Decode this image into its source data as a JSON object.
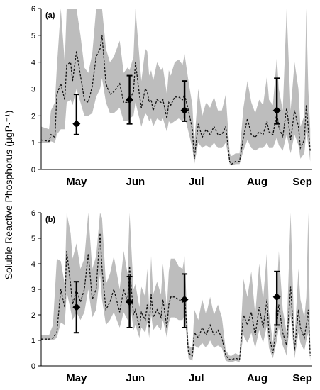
{
  "figure": {
    "ylabel": "Soluble Reactive Phosphorus (µgP·⁻¹)"
  },
  "chart_data": [
    {
      "panel": "(a)",
      "type": "line",
      "ylim": [
        0,
        6
      ],
      "yticks": [
        0,
        1,
        2,
        3,
        4,
        5,
        6
      ],
      "xlim": [
        0,
        138
      ],
      "x_tick_labels": [
        {
          "label": "May",
          "x": 18
        },
        {
          "label": "Jun",
          "x": 48
        },
        {
          "label": "Jul",
          "x": 79
        },
        {
          "label": "Aug",
          "x": 110
        },
        {
          "label": "Sep",
          "x": 133
        }
      ],
      "series": [
        {
          "style": "dashed-black",
          "x": [
            0,
            4,
            5,
            7,
            8,
            10,
            12,
            13,
            15,
            16,
            18,
            20,
            22,
            24,
            26,
            28,
            30,
            31,
            33,
            35,
            37,
            40,
            42,
            44,
            45,
            47,
            48,
            50,
            51,
            53,
            54,
            55,
            56,
            57,
            59,
            61,
            62,
            64,
            65,
            66,
            68,
            70,
            72,
            73,
            75,
            77,
            78,
            80,
            82,
            84,
            86,
            88,
            90,
            92,
            94,
            96,
            97,
            99,
            101,
            103,
            105,
            107,
            109,
            111,
            113,
            115,
            116,
            118,
            120,
            121,
            123,
            125,
            127,
            129,
            131,
            132,
            134,
            135,
            136,
            137
          ],
          "values": [
            1.1,
            1.05,
            1.3,
            1.2,
            2.8,
            3.2,
            2.6,
            3.9,
            4.0,
            3.3,
            4.4,
            3.5,
            2.6,
            2.5,
            3.1,
            4.2,
            4.5,
            5.0,
            3.2,
            2.8,
            2.9,
            3.2,
            2.5,
            2.5,
            2.6,
            2.9,
            4.0,
            2.8,
            2.3,
            3.0,
            2.9,
            2.5,
            2.6,
            2.2,
            2.6,
            2.5,
            2.6,
            1.9,
            2.5,
            2.4,
            2.7,
            2.7,
            2.6,
            2.8,
            2.2,
            1.5,
            0.4,
            1.7,
            1.2,
            1.5,
            1.3,
            1.6,
            1.3,
            1.3,
            1.6,
            0.3,
            0.2,
            0.3,
            0.3,
            1.2,
            1.9,
            1.3,
            1.2,
            1.4,
            1.3,
            1.8,
            1.4,
            1.3,
            2.1,
            1.6,
            1.2,
            2.3,
            1.1,
            2.2,
            1.6,
            0.8,
            1.1,
            2.4,
            1.5,
            0.7
          ]
        },
        {
          "style": "grey-band",
          "x": [
            0,
            4,
            5,
            7,
            8,
            10,
            12,
            13,
            15,
            16,
            18,
            20,
            22,
            24,
            26,
            28,
            30,
            31,
            33,
            35,
            37,
            40,
            42,
            44,
            45,
            47,
            48,
            50,
            51,
            53,
            54,
            55,
            56,
            57,
            59,
            61,
            62,
            64,
            65,
            66,
            68,
            70,
            72,
            73,
            75,
            77,
            78,
            80,
            82,
            84,
            86,
            88,
            90,
            92,
            94,
            96,
            97,
            99,
            101,
            103,
            105,
            107,
            109,
            111,
            113,
            115,
            116,
            118,
            120,
            121,
            123,
            125,
            127,
            129,
            131,
            132,
            134,
            135,
            136,
            137
          ],
          "lower": [
            1.0,
            1.0,
            1.05,
            1.0,
            1.3,
            1.5,
            1.5,
            2.5,
            2.6,
            2.4,
            3.0,
            2.5,
            2.0,
            2.0,
            2.1,
            2.7,
            3.0,
            3.4,
            2.5,
            2.1,
            2.1,
            2.3,
            1.8,
            1.8,
            1.9,
            2.0,
            2.5,
            1.9,
            1.6,
            2.1,
            2.0,
            1.8,
            1.9,
            1.6,
            1.9,
            1.8,
            1.9,
            1.4,
            1.8,
            1.7,
            1.8,
            1.9,
            1.8,
            2.0,
            1.4,
            0.8,
            0.2,
            1.0,
            0.8,
            0.9,
            0.8,
            1.0,
            0.8,
            0.8,
            1.0,
            0.2,
            0.15,
            0.2,
            0.2,
            0.7,
            1.1,
            0.8,
            0.7,
            0.8,
            0.8,
            1.0,
            0.8,
            0.8,
            1.2,
            0.9,
            0.7,
            1.3,
            0.6,
            1.3,
            0.9,
            0.4,
            0.6,
            1.4,
            0.9,
            0.3
          ],
          "upper": [
            1.6,
            1.5,
            2.2,
            2.5,
            3.8,
            6.0,
            4.0,
            6.0,
            6.0,
            6.0,
            6.0,
            5.0,
            3.8,
            3.6,
            4.3,
            6.0,
            6.0,
            6.0,
            4.5,
            4.0,
            4.2,
            4.8,
            3.6,
            3.8,
            3.7,
            4.2,
            6.0,
            4.2,
            3.3,
            4.5,
            4.4,
            3.5,
            3.7,
            3.3,
            4.0,
            3.7,
            3.8,
            2.8,
            3.7,
            3.5,
            4.0,
            4.1,
            3.9,
            4.3,
            3.3,
            2.4,
            1.0,
            3.0,
            2.0,
            2.5,
            2.3,
            2.7,
            2.2,
            2.2,
            2.8,
            0.6,
            0.5,
            0.6,
            0.6,
            2.3,
            3.3,
            2.5,
            2.1,
            2.6,
            2.4,
            3.5,
            2.6,
            2.4,
            4.2,
            3.0,
            2.2,
            6.0,
            2.2,
            4.0,
            3.0,
            1.6,
            2.0,
            6.0,
            3.0,
            1.5
          ]
        },
        {
          "style": "diamond-errorbar",
          "x": [
            18,
            45,
            73,
            120
          ],
          "values": [
            1.7,
            2.6,
            2.2,
            2.2
          ],
          "err_low": [
            1.3,
            1.7,
            1.8,
            1.7
          ],
          "err_high": [
            2.8,
            3.5,
            3.3,
            3.4
          ]
        }
      ]
    },
    {
      "panel": "(b)",
      "type": "line",
      "ylim": [
        0,
        6
      ],
      "yticks": [
        0,
        1,
        2,
        3,
        4,
        5,
        6
      ],
      "xlim": [
        0,
        138
      ],
      "x_tick_labels": [
        {
          "label": "May",
          "x": 18
        },
        {
          "label": "Jun",
          "x": 48
        },
        {
          "label": "Jul",
          "x": 79
        },
        {
          "label": "Aug",
          "x": 110
        },
        {
          "label": "Sep",
          "x": 133
        }
      ],
      "series": [
        {
          "style": "dashed-black",
          "x": [
            0,
            4,
            6,
            8,
            10,
            12,
            13,
            15,
            16,
            18,
            20,
            22,
            24,
            26,
            28,
            30,
            31,
            33,
            35,
            37,
            40,
            42,
            44,
            45,
            47,
            48,
            50,
            51,
            53,
            54,
            55,
            56,
            57,
            59,
            61,
            62,
            64,
            65,
            66,
            68,
            70,
            72,
            73,
            75,
            77,
            78,
            80,
            82,
            84,
            86,
            88,
            90,
            92,
            94,
            96,
            97,
            99,
            101,
            103,
            105,
            107,
            109,
            111,
            113,
            115,
            116,
            118,
            120,
            121,
            123,
            125,
            127,
            129,
            131,
            132,
            134,
            135,
            136,
            137
          ],
          "values": [
            1.05,
            1.05,
            1.1,
            1.3,
            3.0,
            2.3,
            4.5,
            3.2,
            2.4,
            3.0,
            2.5,
            3.0,
            4.4,
            2.6,
            3.0,
            5.2,
            3.8,
            2.2,
            2.5,
            3.0,
            2.1,
            3.0,
            2.5,
            3.9,
            2.0,
            2.2,
            1.5,
            2.1,
            1.8,
            2.4,
            1.5,
            2.8,
            1.9,
            2.2,
            1.9,
            2.6,
            1.5,
            2.4,
            2.7,
            2.7,
            2.6,
            2.5,
            2.8,
            0.5,
            0.4,
            1.3,
            1.1,
            1.5,
            1.2,
            1.6,
            1.2,
            1.4,
            1.1,
            0.4,
            0.25,
            0.25,
            0.3,
            0.25,
            2.0,
            1.6,
            2.1,
            1.2,
            2.3,
            1.5,
            2.6,
            1.2,
            0.5,
            1.6,
            2.4,
            1.3,
            0.8,
            3.1,
            0.6,
            2.2,
            1.5,
            1.1,
            1.6,
            2.2,
            0.4
          ]
        },
        {
          "style": "grey-band",
          "x": [
            0,
            4,
            6,
            8,
            10,
            12,
            13,
            15,
            16,
            18,
            20,
            22,
            24,
            26,
            28,
            30,
            31,
            33,
            35,
            37,
            40,
            42,
            44,
            45,
            47,
            48,
            50,
            51,
            53,
            54,
            55,
            56,
            57,
            59,
            61,
            62,
            64,
            65,
            66,
            68,
            70,
            72,
            73,
            75,
            77,
            78,
            80,
            82,
            84,
            86,
            88,
            90,
            92,
            94,
            96,
            97,
            99,
            101,
            103,
            105,
            107,
            109,
            111,
            113,
            115,
            116,
            118,
            120,
            121,
            123,
            125,
            127,
            129,
            131,
            132,
            134,
            135,
            136,
            137
          ],
          "lower": [
            1.0,
            1.0,
            1.0,
            1.1,
            1.7,
            1.6,
            2.9,
            2.2,
            1.8,
            2.1,
            1.8,
            2.1,
            3.0,
            1.9,
            2.2,
            3.6,
            2.6,
            1.6,
            1.8,
            2.1,
            1.5,
            2.1,
            1.8,
            2.7,
            1.4,
            1.6,
            1.1,
            1.5,
            1.3,
            1.7,
            1.1,
            2.0,
            1.4,
            1.6,
            1.4,
            1.8,
            1.1,
            1.7,
            1.9,
            1.9,
            1.8,
            1.8,
            2.0,
            0.3,
            0.2,
            0.8,
            0.7,
            0.9,
            0.7,
            1.0,
            0.7,
            0.8,
            0.7,
            0.2,
            0.15,
            0.15,
            0.2,
            0.15,
            1.2,
            0.9,
            1.3,
            0.7,
            1.4,
            0.9,
            1.6,
            0.7,
            0.3,
            1.0,
            1.5,
            0.8,
            0.4,
            2.0,
            0.3,
            1.3,
            0.9,
            0.6,
            1.0,
            1.3,
            0.2
          ],
          "upper": [
            1.2,
            1.2,
            1.6,
            4.2,
            4.1,
            3.2,
            6.0,
            5.2,
            4.2,
            4.8,
            3.8,
            4.2,
            6.0,
            3.8,
            4.3,
            6.0,
            5.8,
            3.2,
            3.6,
            4.3,
            3.0,
            4.5,
            3.6,
            6.0,
            3.0,
            3.2,
            2.3,
            3.1,
            2.7,
            3.8,
            2.3,
            4.3,
            2.8,
            3.3,
            2.8,
            4.0,
            2.3,
            3.7,
            4.2,
            4.2,
            3.9,
            3.8,
            4.3,
            0.8,
            0.7,
            2.2,
            1.8,
            2.6,
            2.0,
            2.7,
            2.0,
            2.4,
            1.9,
            0.6,
            0.4,
            0.4,
            0.5,
            0.4,
            3.4,
            2.7,
            3.7,
            2.0,
            4.0,
            2.6,
            4.5,
            2.1,
            0.9,
            2.8,
            4.5,
            2.2,
            1.3,
            6.0,
            1.0,
            3.8,
            2.6,
            1.9,
            2.7,
            6.0,
            0.8
          ]
        },
        {
          "style": "diamond-errorbar",
          "x": [
            18,
            45,
            73,
            120
          ],
          "values": [
            2.3,
            2.5,
            2.6,
            2.7
          ],
          "err_low": [
            1.3,
            1.5,
            1.5,
            1.6
          ],
          "err_high": [
            3.3,
            3.5,
            3.6,
            3.7
          ]
        }
      ]
    }
  ]
}
